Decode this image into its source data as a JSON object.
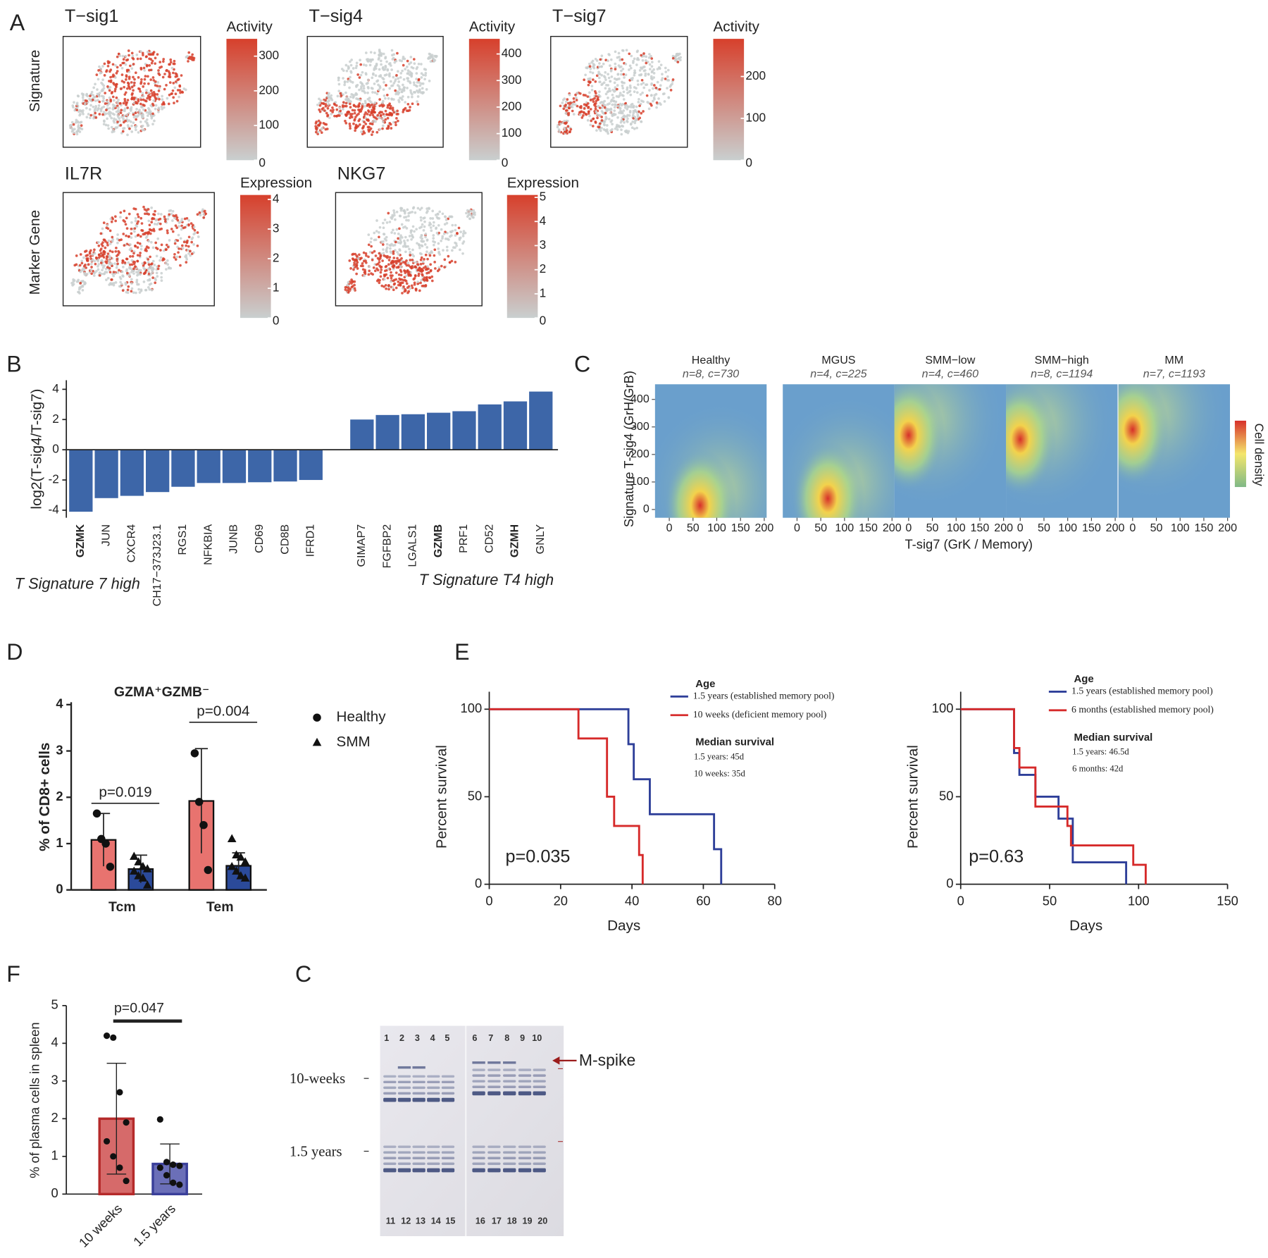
{
  "chart_data": [
    {
      "type": "embedding",
      "panel": "A",
      "colors": [
        "#c9cfcf",
        "#d7402c"
      ],
      "rows": [
        {
          "label": "Signature",
          "panels": [
            {
              "title": "T−sig1",
              "legend_title": "Activity",
              "clim": [
                0,
                350
              ],
              "ticks": [
                0,
                100,
                200,
                300
              ]
            },
            {
              "title": "T−sig4",
              "legend_title": "Activity",
              "clim": [
                0,
                457
              ],
              "ticks": [
                0,
                100,
                200,
                300,
                400
              ]
            },
            {
              "title": "T−sig7",
              "legend_title": "Activity",
              "clim": [
                0,
                290
              ],
              "ticks": [
                0,
                100,
                200
              ]
            }
          ]
        },
        {
          "label": "Marker Gene",
          "panels": [
            {
              "title": "IL7R",
              "legend_title": "Expression",
              "clim": [
                0,
                4.15
              ],
              "ticks": [
                0,
                1,
                2,
                3,
                4
              ]
            },
            {
              "title": "NKG7",
              "legend_title": "Expression",
              "clim": [
                0,
                5.1
              ],
              "ticks": [
                0,
                1,
                2,
                3,
                4,
                5
              ]
            }
          ]
        }
      ]
    },
    {
      "type": "bar",
      "panel": "B",
      "ylabel": "log2(T-sig4/T-sig7)",
      "color": "#3d66a8",
      "categories": [
        "GZMK",
        "JUN",
        "CXCR4",
        "CH17−373J23.1",
        "RGS1",
        "NFKBIA",
        "JUNB",
        "CD69",
        "CD8B",
        "IFRD1",
        "GIMAP7",
        "FGFBP2",
        "LGALS1",
        "GZMB",
        "PRF1",
        "CD52",
        "GZMH",
        "GNLY"
      ],
      "values": [
        -4.1,
        -3.2,
        -3.05,
        -2.8,
        -2.45,
        -2.2,
        -2.2,
        -2.15,
        -2.1,
        -2.0,
        2.0,
        2.3,
        2.35,
        2.45,
        2.55,
        3.0,
        3.2,
        3.85
      ],
      "bold": [
        0,
        13,
        16
      ],
      "ylim": [
        -4.5,
        4.6
      ],
      "yticks": [
        -4,
        -2,
        0,
        2,
        4
      ],
      "annotations": [
        {
          "text": "T Signature 7 high",
          "color": "#2e3f8f"
        },
        {
          "text": "T Signature T4 high",
          "color": "#c8262b"
        }
      ]
    },
    {
      "type": "density",
      "panel": "C",
      "xlabel": "T-sig7 (GrK / Memory)",
      "ylabel": "Signature T-sig4 (GrH/GrB)",
      "legend_title": "Cell density",
      "xlim": [
        -30,
        205
      ],
      "xticks": [
        0,
        50,
        100,
        150,
        200
      ],
      "ylim": [
        -30,
        455
      ],
      "yticks": [
        0,
        100,
        200,
        300,
        400
      ],
      "facets": [
        {
          "title": "Healthy",
          "subtitle": "n=8, c=730",
          "peak": [
            65,
            15
          ]
        },
        {
          "title": "MGUS",
          "subtitle": "n=4, c=225",
          "peak": [
            65,
            40
          ]
        },
        {
          "title": "SMM−low",
          "subtitle": "n=4, c=460",
          "peak": [
            0,
            270
          ]
        },
        {
          "title": "SMM−high",
          "subtitle": "n=8, c=1194",
          "peak": [
            0,
            255
          ]
        },
        {
          "title": "MM",
          "subtitle": "n=7, c=1193",
          "peak": [
            0,
            290
          ]
        }
      ]
    },
    {
      "type": "bar",
      "panel": "D",
      "title": "GZMA⁺GZMB⁻",
      "ylabel": "% of CD8+ cells",
      "categories": [
        "Tcm",
        "Tem"
      ],
      "ylim": [
        0,
        4
      ],
      "yticks": [
        0,
        1,
        2,
        3,
        4
      ],
      "series": [
        {
          "name": "Healthy",
          "color": "#e8736f",
          "marker": "circle",
          "values": [
            1.08,
            1.92
          ],
          "errors": [
            0.57,
            1.13
          ],
          "points": [
            [
              1.65,
              1.1,
              1.0,
              0.5
            ],
            [
              2.95,
              1.9,
              1.4,
              0.43
            ]
          ]
        },
        {
          "name": "SMM",
          "color": "#2b4a9a",
          "marker": "triangle",
          "values": [
            0.45,
            0.52
          ],
          "errors": [
            0.3,
            0.28
          ],
          "points": [
            [
              0.72,
              0.6,
              0.5,
              0.45,
              0.4,
              0.3,
              0.25,
              0.1
            ],
            [
              1.1,
              0.75,
              0.7,
              0.6,
              0.5,
              0.4,
              0.3,
              0.25
            ]
          ]
        }
      ],
      "annotations": [
        {
          "text": "p=0.019",
          "category": 0,
          "y": 1.87
        },
        {
          "text": "p=0.004",
          "category": 1,
          "y": 3.62
        }
      ]
    },
    {
      "type": "survival",
      "panel": "E",
      "xlabel": "Days",
      "ylabel": "Percent survival",
      "xlim": [
        0,
        80
      ],
      "xticks": [
        0,
        20,
        40,
        60,
        80
      ],
      "ylim": [
        0,
        110
      ],
      "yticks": [
        0,
        50,
        100
      ],
      "legend_title": "Age",
      "series": [
        {
          "name": "1.5 years (established memory pool)",
          "color": "#2e3f99",
          "x": [
            0,
            39,
            40.5,
            45,
            63,
            65
          ],
          "values": [
            100,
            80,
            60,
            40,
            20,
            0
          ]
        },
        {
          "name": "10 weeks (deficient memory pool)",
          "color": "#d62a2a",
          "x": [
            0,
            25,
            33,
            35,
            42,
            43
          ],
          "values": [
            100,
            83.3,
            50,
            33.3,
            16.7,
            0
          ]
        }
      ],
      "median_title": "Median survival",
      "medians": [
        "1.5 years: 45d",
        "10 weeks: 35d"
      ],
      "annotation": "p=0.035"
    },
    {
      "type": "survival",
      "xlabel": "Days",
      "ylabel": "Percent survival",
      "xlim": [
        0,
        150
      ],
      "xticks": [
        0,
        50,
        100,
        150
      ],
      "ylim": [
        0,
        110
      ],
      "yticks": [
        0,
        50,
        100
      ],
      "legend_title": "Age",
      "series": [
        {
          "name": "1.5 years (established memory pool)",
          "color": "#2e3f99",
          "x": [
            0,
            30,
            33,
            42,
            55,
            63,
            93
          ],
          "values": [
            100,
            75,
            62.5,
            50,
            37.5,
            12.5,
            0
          ]
        },
        {
          "name": "6 months (established memory pool)",
          "color": "#d62a2a",
          "x": [
            0,
            30,
            33,
            42,
            60,
            62,
            97,
            104
          ],
          "values": [
            100,
            77.8,
            66.7,
            44.4,
            33.3,
            22.2,
            11.1,
            0
          ]
        }
      ],
      "median_title": "Median survival",
      "medians": [
        "1.5 years: 46.5d",
        "6 months: 42d"
      ],
      "annotation": "p=0.63"
    },
    {
      "type": "bar",
      "panel": "F",
      "ylabel": "% of plasma cells in spleen",
      "categories": [
        "10 weeks",
        "1.5 years"
      ],
      "colors": [
        "#d66a6a",
        "#6b6fb8"
      ],
      "edge_colors": [
        "#b52a2a",
        "#3a3f9a"
      ],
      "values": [
        2.0,
        0.8
      ],
      "errors": [
        1.47,
        0.53
      ],
      "points": [
        [
          4.2,
          4.15,
          2.7,
          1.9,
          1.4,
          1.0,
          0.7,
          0.35
        ],
        [
          1.98,
          0.85,
          0.78,
          0.75,
          0.7,
          0.5,
          0.3,
          0.25
        ]
      ],
      "ylim": [
        0,
        5
      ],
      "yticks": [
        0,
        1,
        2,
        3,
        4,
        5
      ],
      "annotations": [
        {
          "text": "p=0.047",
          "y": 4.59
        }
      ]
    }
  ],
  "gel": {
    "panel": "C",
    "lanes_top": [
      1,
      2,
      3,
      4,
      5,
      6,
      7,
      8,
      9,
      10
    ],
    "lanes_bottom": [
      11,
      12,
      13,
      14,
      15,
      16,
      17,
      18,
      19,
      20
    ],
    "rows": [
      "10-weeks",
      "1.5 years"
    ],
    "annotation": "M-spike"
  }
}
